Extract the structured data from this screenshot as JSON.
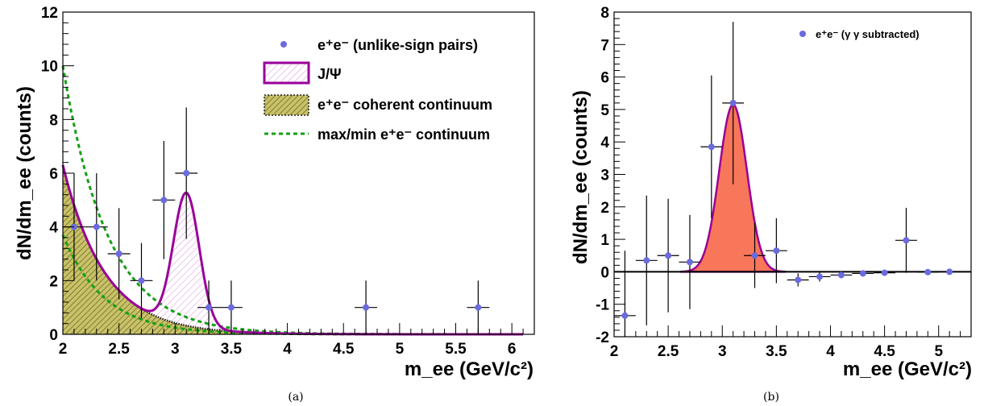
{
  "chart_data": [
    {
      "panel": "(a)",
      "type": "scatter",
      "xlabel": "m_ee (GeV/c²)",
      "ylabel": "dN/dm_ee (counts)",
      "xlim": [
        2,
        6.2
      ],
      "ylim": [
        0,
        12
      ],
      "x_ticks": [
        "2",
        "2.5",
        "3",
        "3.5",
        "4",
        "4.5",
        "5",
        "5.5",
        "6"
      ],
      "y_ticks": [
        "0",
        "2",
        "4",
        "6",
        "8",
        "10",
        "12"
      ],
      "legend": [
        {
          "label": "e⁺e⁻ (unlike-sign pairs)",
          "style": "marker"
        },
        {
          "label": "J/Ψ",
          "style": "hatched-magenta"
        },
        {
          "label": "e⁺e⁻ coherent continuum",
          "style": "olive-fill"
        },
        {
          "label": "max/min e⁺e⁻ continuum",
          "style": "green-dashed"
        }
      ],
      "legend_placement": "top-right",
      "series": [
        {
          "name": "e⁺e⁻ (unlike-sign pairs)",
          "points": [
            {
              "x": 2.1,
              "y": 4,
              "xerr": 0.1,
              "yerr_lo": 2,
              "yerr_hi": 2
            },
            {
              "x": 2.3,
              "y": 4,
              "xerr": 0.1,
              "yerr_lo": 2,
              "yerr_hi": 2
            },
            {
              "x": 2.5,
              "y": 3,
              "xerr": 0.1,
              "yerr_lo": 1.7,
              "yerr_hi": 1.7
            },
            {
              "x": 2.7,
              "y": 2,
              "xerr": 0.1,
              "yerr_lo": 1.4,
              "yerr_hi": 1.4
            },
            {
              "x": 2.9,
              "y": 5,
              "xerr": 0.1,
              "yerr_lo": 2.2,
              "yerr_hi": 2.2
            },
            {
              "x": 3.1,
              "y": 6,
              "xerr": 0.1,
              "yerr_lo": 2.45,
              "yerr_hi": 2.45
            },
            {
              "x": 3.3,
              "y": 1,
              "xerr": 0.1,
              "yerr_lo": 1,
              "yerr_hi": 1
            },
            {
              "x": 3.5,
              "y": 1,
              "xerr": 0.1,
              "yerr_lo": 1,
              "yerr_hi": 1
            },
            {
              "x": 4.7,
              "y": 1,
              "xerr": 0.1,
              "yerr_lo": 1,
              "yerr_hi": 1
            },
            {
              "x": 5.7,
              "y": 1,
              "xerr": 0.1,
              "yerr_lo": 1,
              "yerr_hi": 1
            }
          ]
        }
      ],
      "coherent_continuum": {
        "amplitude_at_2": 6.3,
        "slope": 2.7
      },
      "jpsi_peak": {
        "mean": 3.1,
        "sigma": 0.115,
        "height": 4.95
      },
      "max_continuum": {
        "amplitude_at_2": 10.0,
        "slope": 2.5
      },
      "min_continuum": {
        "amplitude_at_2": 3.7,
        "slope": 2.7
      },
      "grid": false
    },
    {
      "panel": "(b)",
      "type": "scatter",
      "xlabel": "m_ee (GeV/c²)",
      "ylabel": "dN/dm_ee (counts)",
      "xlim": [
        2,
        5.3
      ],
      "ylim": [
        -2,
        8
      ],
      "x_ticks": [
        "2",
        "2.5",
        "3",
        "3.5",
        "4",
        "4.5",
        "5"
      ],
      "y_ticks": [
        "-2",
        "-1",
        "0",
        "1",
        "2",
        "3",
        "4",
        "5",
        "6",
        "7",
        "8"
      ],
      "legend": [
        {
          "label": "e⁺e⁻ (γ γ subtracted)",
          "style": "marker"
        }
      ],
      "legend_placement": "top-right",
      "series": [
        {
          "name": "e⁺e⁻ (γ γ subtracted)",
          "points": [
            {
              "x": 2.1,
              "y": -1.35,
              "xerr": 0.1,
              "yerr_lo": 0.65,
              "yerr_hi": 2.0
            },
            {
              "x": 2.3,
              "y": 0.35,
              "xerr": 0.1,
              "yerr_lo": 2.0,
              "yerr_hi": 2.0
            },
            {
              "x": 2.5,
              "y": 0.5,
              "xerr": 0.1,
              "yerr_lo": 1.75,
              "yerr_hi": 1.75
            },
            {
              "x": 2.7,
              "y": 0.3,
              "xerr": 0.1,
              "yerr_lo": 1.45,
              "yerr_hi": 1.45
            },
            {
              "x": 2.9,
              "y": 3.85,
              "xerr": 0.1,
              "yerr_lo": 2.2,
              "yerr_hi": 2.2
            },
            {
              "x": 3.1,
              "y": 5.2,
              "xerr": 0.1,
              "yerr_lo": 2.5,
              "yerr_hi": 2.5
            },
            {
              "x": 3.3,
              "y": 0.5,
              "xerr": 0.1,
              "yerr_lo": 1.0,
              "yerr_hi": 1.0
            },
            {
              "x": 3.5,
              "y": 0.65,
              "xerr": 0.1,
              "yerr_lo": 1.0,
              "yerr_hi": 1.0
            },
            {
              "x": 3.7,
              "y": -0.25,
              "xerr": 0.1,
              "yerr_lo": 0.2,
              "yerr_hi": 0.2
            },
            {
              "x": 3.9,
              "y": -0.15,
              "xerr": 0.1,
              "yerr_lo": 0.15,
              "yerr_hi": 0.15
            },
            {
              "x": 4.1,
              "y": -0.1,
              "xerr": 0.1,
              "yerr_lo": 0.1,
              "yerr_hi": 0.1
            },
            {
              "x": 4.3,
              "y": -0.05,
              "xerr": 0.1,
              "yerr_lo": 0.08,
              "yerr_hi": 0.08
            },
            {
              "x": 4.5,
              "y": -0.03,
              "xerr": 0.1,
              "yerr_lo": 0.05,
              "yerr_hi": 0.05
            },
            {
              "x": 4.7,
              "y": 0.97,
              "xerr": 0.1,
              "yerr_lo": 1.0,
              "yerr_hi": 1.0
            },
            {
              "x": 4.9,
              "y": -0.01,
              "xerr": 0.1,
              "yerr_lo": 0.03,
              "yerr_hi": 0.03
            },
            {
              "x": 5.1,
              "y": 0.0,
              "xerr": 0.1,
              "yerr_lo": 0.02,
              "yerr_hi": 0.02
            }
          ]
        }
      ],
      "jpsi_peak": {
        "mean": 3.1,
        "sigma": 0.128,
        "height": 5.15,
        "x_range": [
          2.62,
          3.58
        ]
      },
      "zero_line": true,
      "grid": false
    }
  ],
  "captions": [
    "(a)",
    "(b)"
  ],
  "colors": {
    "marker": "#6b6bdd",
    "jpsi_line": "#990099",
    "jpsi_hatch": "#d98ed9",
    "continuum_fill": "#c9c268",
    "continuum_hatch": "#6e6a2a",
    "continuum_outline": "#222222",
    "green_dashed": "#14a014",
    "peak_fill": "#f8765a"
  }
}
